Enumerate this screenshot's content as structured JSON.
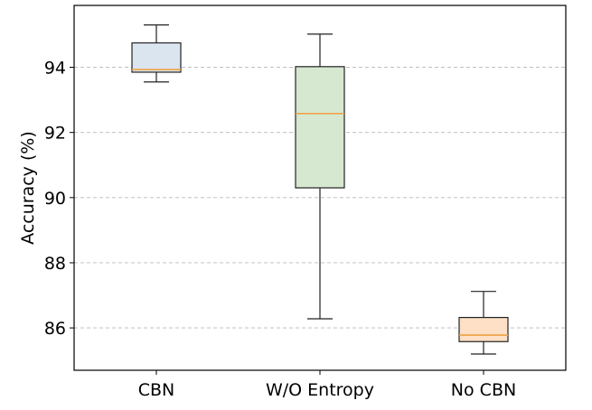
{
  "chart_data": {
    "type": "box",
    "title": "",
    "xlabel": "",
    "ylabel": "Accuracy (%)",
    "ylim": [
      84.7,
      95.9
    ],
    "yticks": [
      "86",
      "88",
      "90",
      "92",
      "94"
    ],
    "grid": "y-dashed",
    "categories": [
      "CBN",
      "W/O Entropy",
      "No CBN"
    ],
    "boxes": [
      {
        "whisker_low": 93.55,
        "q1": 93.85,
        "median": 93.93,
        "q3": 94.75,
        "whisker_high": 95.3,
        "fill": "#dae5f0"
      },
      {
        "whisker_low": 86.28,
        "q1": 90.3,
        "median": 92.58,
        "q3": 94.02,
        "whisker_high": 95.02,
        "fill": "#d6e8d0"
      },
      {
        "whisker_low": 85.2,
        "q1": 85.58,
        "median": 85.78,
        "q3": 86.32,
        "whisker_high": 87.12,
        "fill": "#fde0c6"
      }
    ],
    "median_color": "#f0a040",
    "edge_color": "#222222",
    "grid_color": "#b8b8b8"
  }
}
